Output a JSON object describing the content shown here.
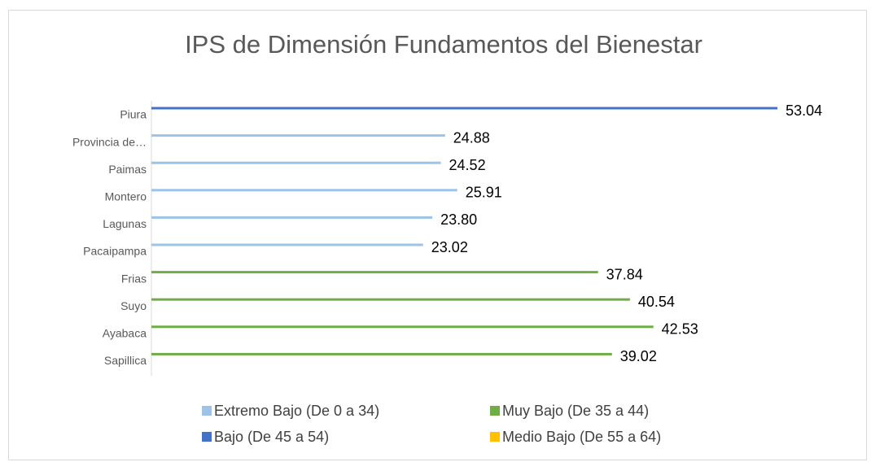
{
  "chart_data": {
    "type": "bar",
    "orientation": "horizontal",
    "title": "IPS de Dimensión Fundamentos del Bienestar",
    "categories": [
      "Piura",
      "Provincia de…",
      "Paimas",
      "Montero",
      "Lagunas",
      "Pacaipampa",
      "Frias",
      "Suyo",
      "Ayabaca",
      "Sapillica"
    ],
    "values": [
      53.04,
      24.88,
      24.52,
      25.91,
      23.8,
      23.02,
      37.84,
      40.54,
      42.53,
      39.02
    ],
    "value_labels": [
      "53.04",
      "24.88",
      "24.52",
      "25.91",
      "23.80",
      "23.02",
      "37.84",
      "40.54",
      "42.53",
      "39.02"
    ],
    "colors": [
      "#4472c4",
      "#9dc3e6",
      "#9dc3e6",
      "#9dc3e6",
      "#9dc3e6",
      "#9dc3e6",
      "#70ad47",
      "#70ad47",
      "#70ad47",
      "#70ad47"
    ],
    "legend": [
      {
        "name": "Extremo Bajo (De 0 a 34)",
        "color": "#9dc3e6"
      },
      {
        "name": "Muy Bajo (De 35 a 44)",
        "color": "#70ad47"
      },
      {
        "name": "Bajo (De 45 a 54)",
        "color": "#4472c4"
      },
      {
        "name": "Medio Bajo (De 55 a 64)",
        "color": "#ffc000"
      }
    ],
    "xlim": [
      0,
      60
    ]
  }
}
